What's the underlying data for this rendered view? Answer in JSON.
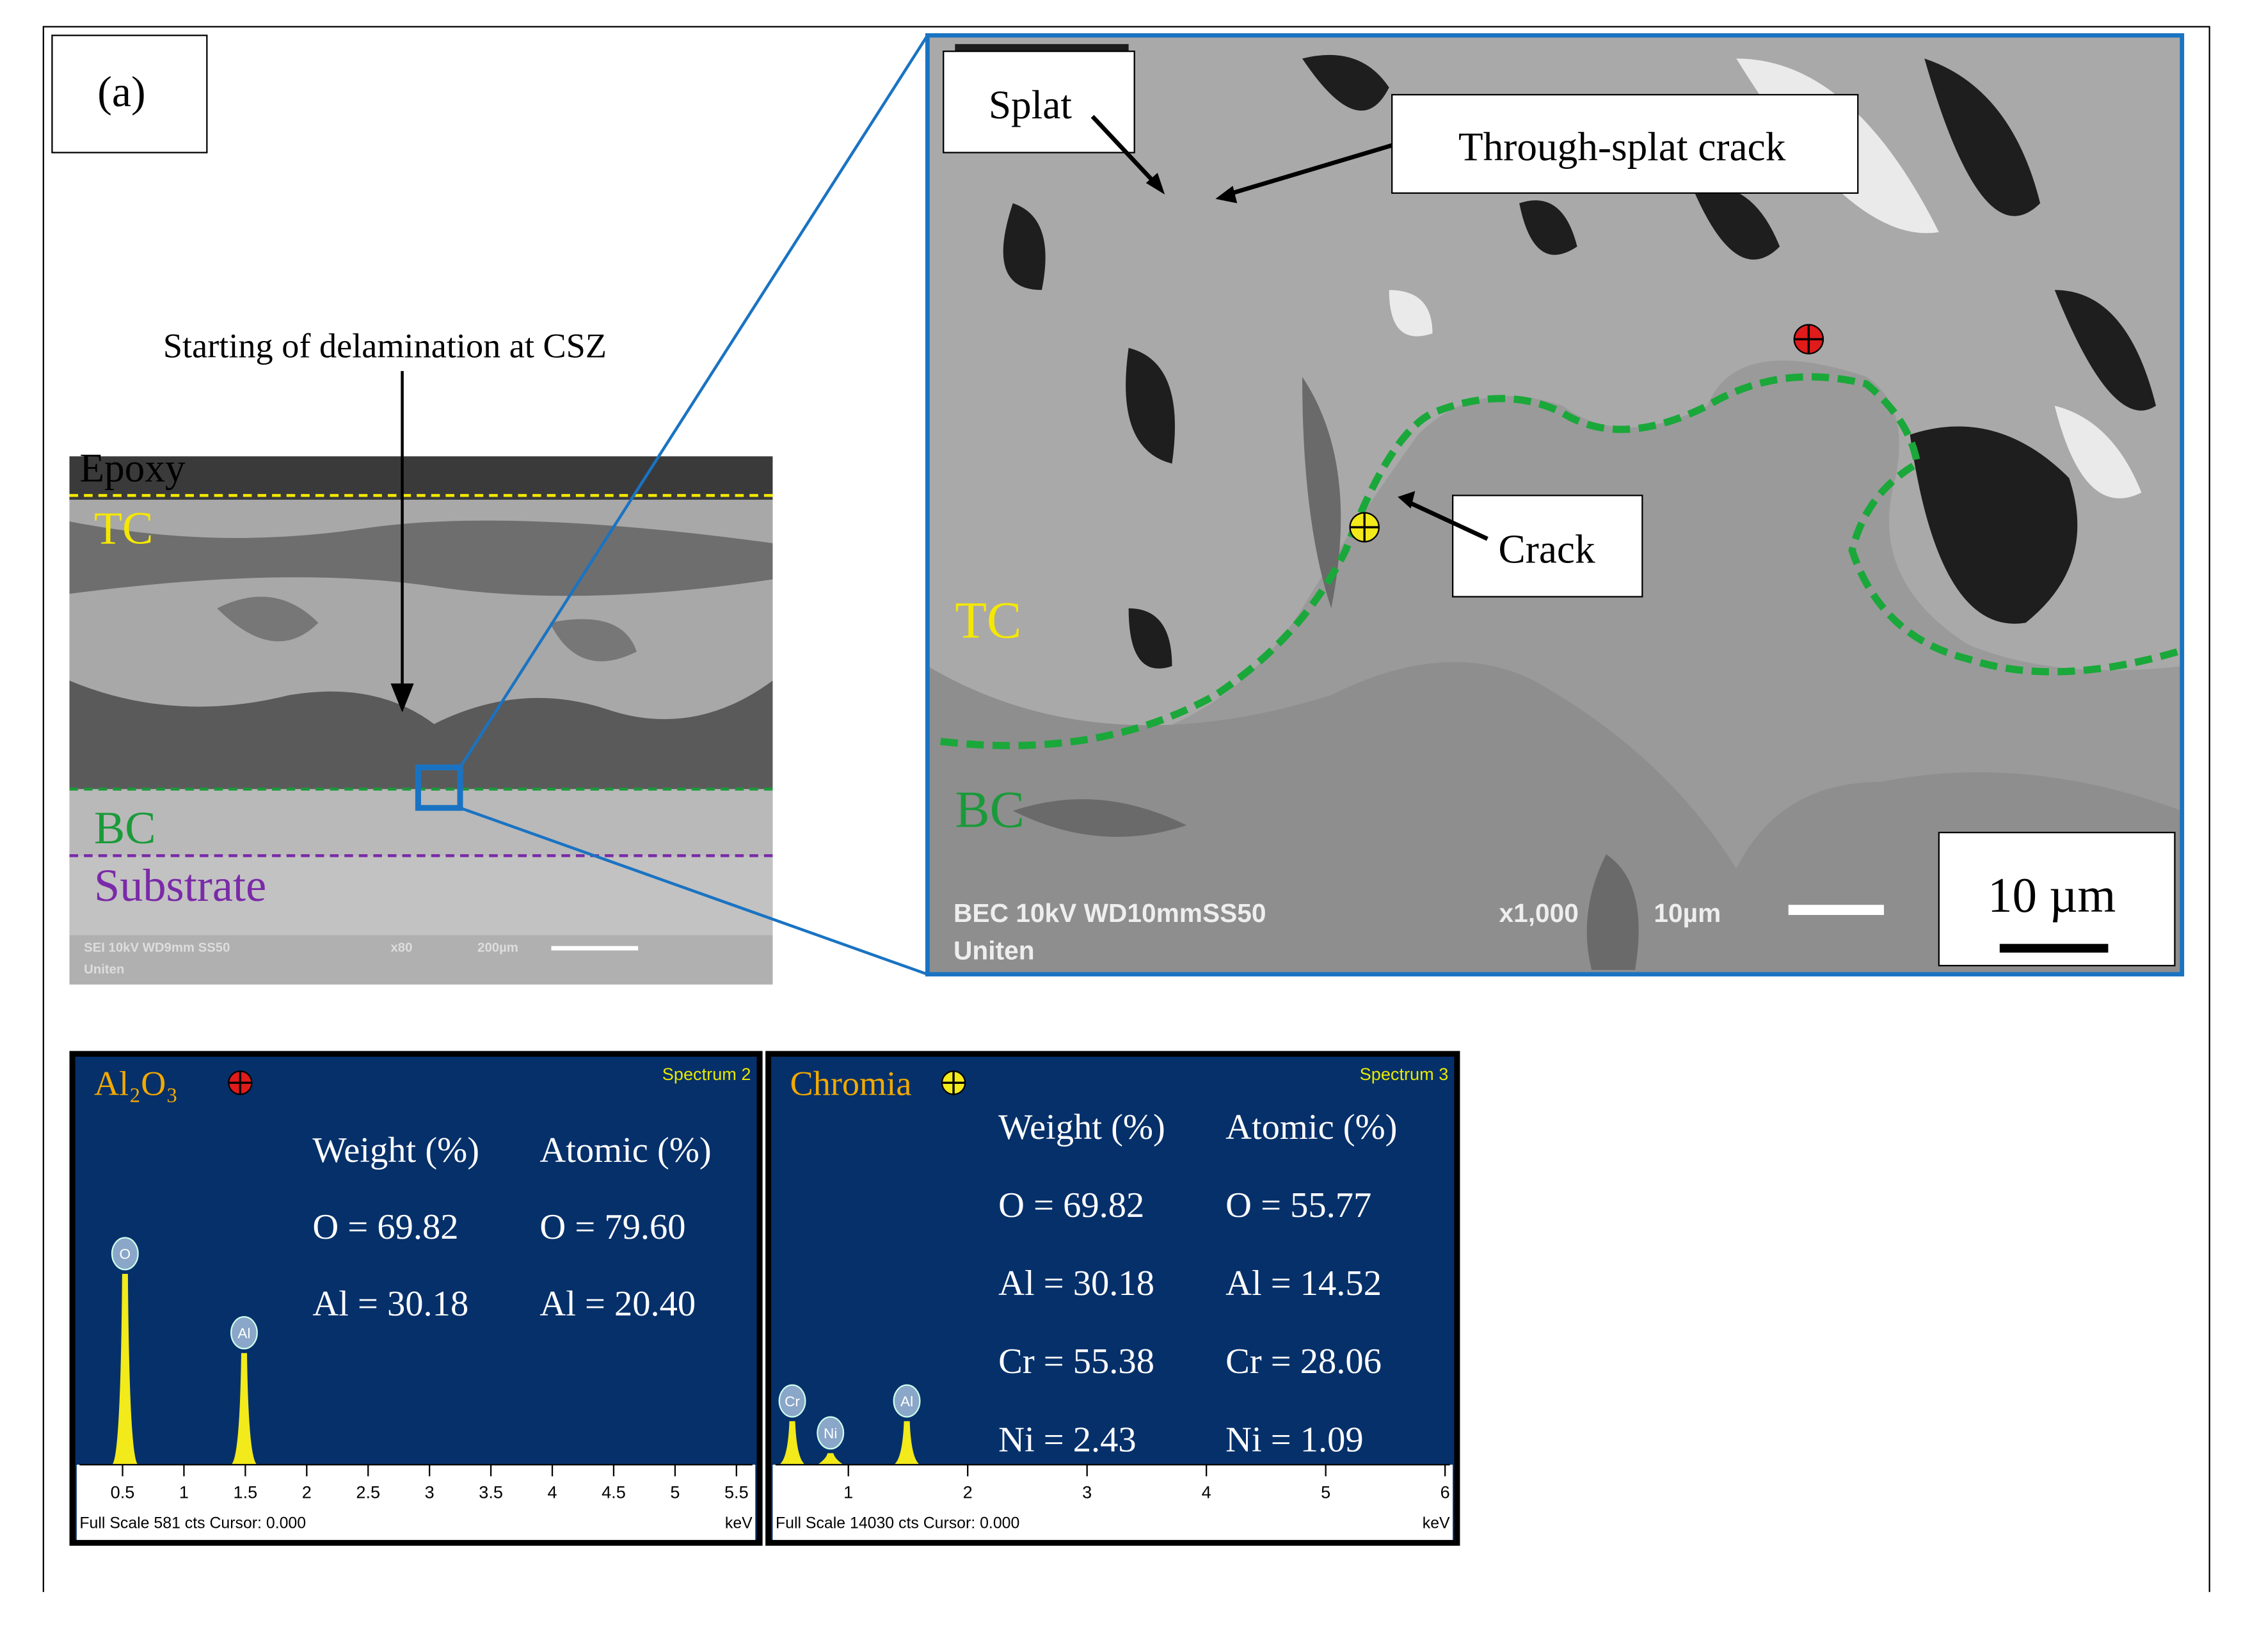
{
  "figure": {
    "panel_label": "(a)",
    "overview": {
      "annotation": "Starting of delamination at CSZ",
      "layers": [
        "Epoxy",
        "TC",
        "BC",
        "Substrate"
      ],
      "info": [
        "SEI 10kV WD9mm SS50",
        "x80",
        "200µm",
        "Uniten"
      ]
    },
    "detail": {
      "labels": [
        "Splat",
        "Through-splat crack",
        "Crack",
        "TC",
        "BC"
      ],
      "info": [
        "BEC 10kV WD10mmSS50",
        "x1,000",
        "10µm",
        "Uniten"
      ],
      "scale_bar": "10 µm"
    },
    "spectra": [
      {
        "title": "Al₂O₃",
        "spectrum": "Spectrum 2",
        "columns": [
          "Weight (%)",
          "Atomic (%)"
        ],
        "rows": [
          [
            "O = 69.82",
            "O = 79.60"
          ],
          [
            "Al = 30.18",
            "Al = 20.40"
          ]
        ],
        "footer": "Full Scale 581 cts Cursor: 0.000",
        "unit": "keV",
        "xlim": [
          0.15,
          5.63
        ],
        "xticks": [
          0.5,
          1,
          1.5,
          2,
          2.5,
          3,
          3.5,
          4,
          4.5,
          5,
          5.5
        ],
        "ylim": [
          0,
          581
        ],
        "peaks": [
          {
            "label": "O",
            "energy": 0.52,
            "counts": 287
          },
          {
            "label": "Al",
            "energy": 1.49,
            "counts": 168
          }
        ]
      },
      {
        "title": "Chromia",
        "spectrum": "Spectrum 3",
        "columns": [
          "Weight (%)",
          "Atomic (%)"
        ],
        "rows": [
          [
            "O = 69.82",
            "O = 55.77"
          ],
          [
            "Al = 30.18",
            "Al = 14.52"
          ],
          [
            "Cr = 55.38",
            "Cr = 28.06"
          ],
          [
            "Ni = 2.43",
            "Ni = 1.09"
          ]
        ],
        "footer": "Full Scale 14030 cts Cursor: 0.000",
        "unit": "keV",
        "xlim": [
          0.39,
          6.04
        ],
        "xticks": [
          1,
          2,
          3,
          4,
          5,
          6
        ],
        "ylim": [
          0,
          14030
        ],
        "peaks": [
          {
            "label": "Cr",
            "energy": 0.53,
            "counts": 1580
          },
          {
            "label": "Ni",
            "energy": 0.85,
            "counts": 420
          },
          {
            "label": "Al",
            "energy": 1.49,
            "counts": 1580
          }
        ]
      }
    ]
  }
}
